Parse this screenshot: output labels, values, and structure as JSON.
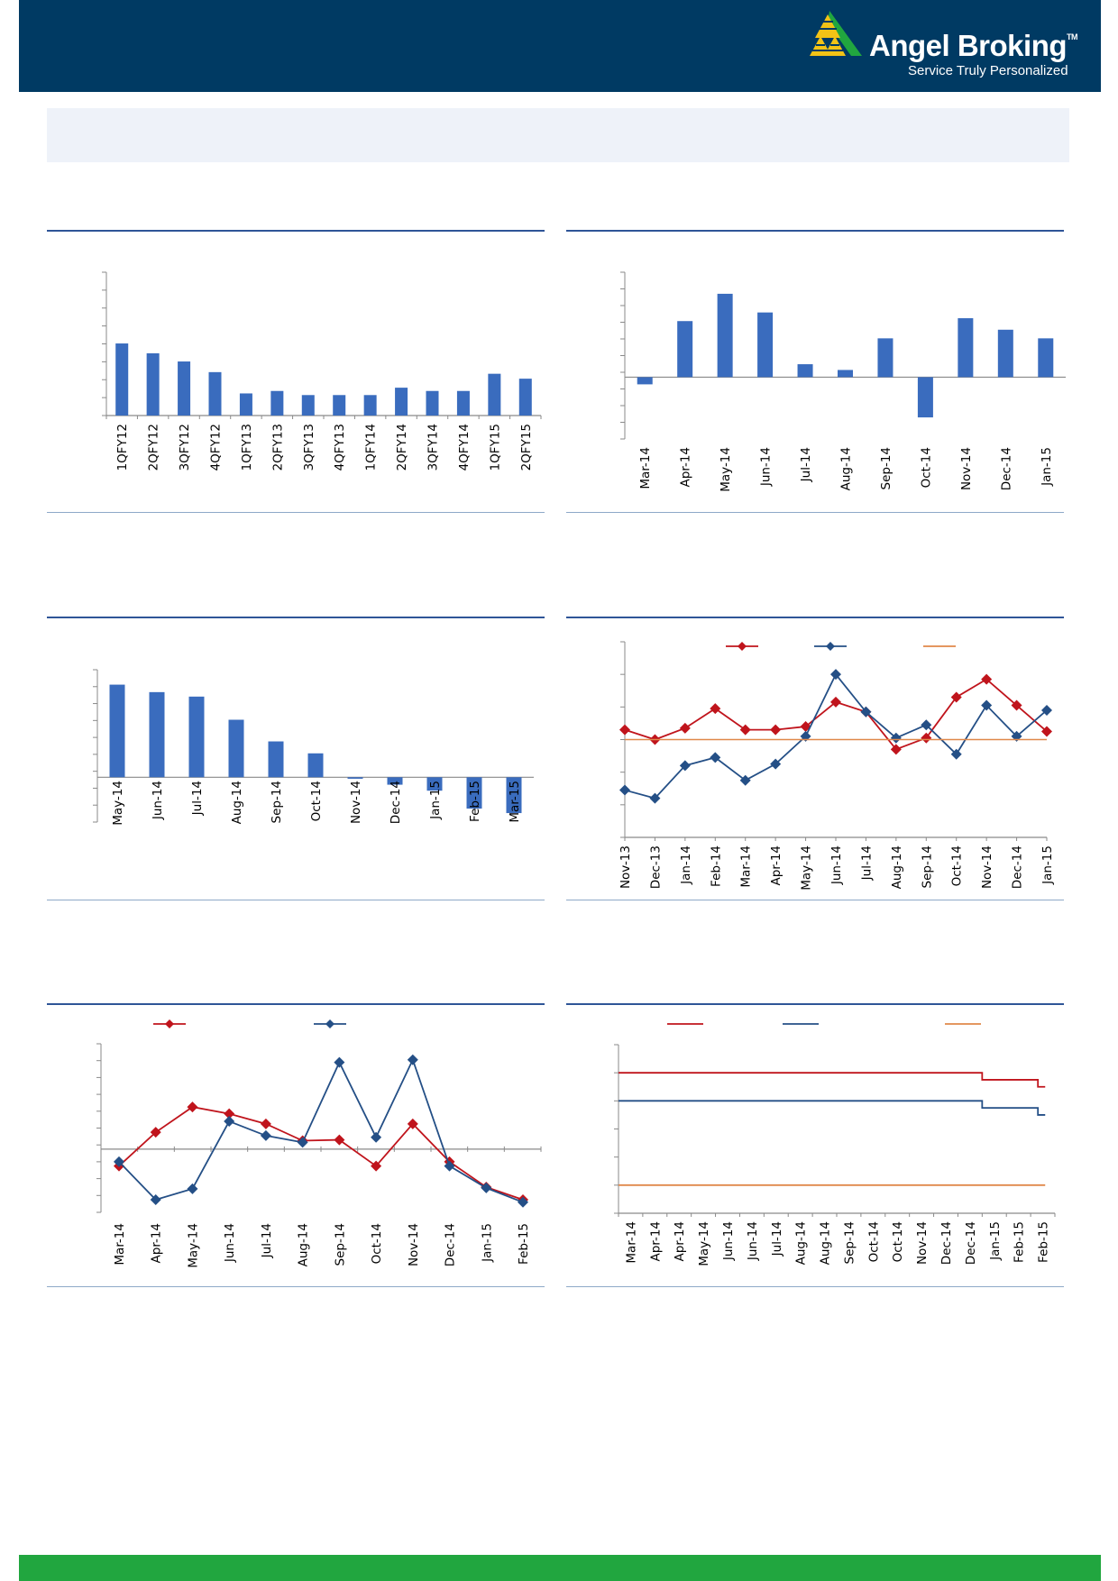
{
  "brand": {
    "name": "Angel Broking",
    "trademark": "TM",
    "tagline": "Service Truly Personalized"
  },
  "colors": {
    "header_bg": "#003a63",
    "accent_green": "#21a63f",
    "bar_blue": "#3a6cbe",
    "series_red": "#c0141c",
    "series_navy": "#244f86",
    "series_orange": "#e0884a",
    "rule_blue": "#2f5597"
  },
  "chart_data": [
    {
      "type": "bar",
      "categories": [
        "1QFY12",
        "2QFY12",
        "3QFY12",
        "4QFY12",
        "1QFY13",
        "2QFY13",
        "3QFY13",
        "4QFY13",
        "1QFY14",
        "2QFY14",
        "3QFY14",
        "4QFY14",
        "1QFY15",
        "2QFY15"
      ],
      "values": [
        8.8,
        7.6,
        6.6,
        5.3,
        2.7,
        3.0,
        2.5,
        2.5,
        2.5,
        3.4,
        3.0,
        3.0,
        5.1,
        4.5
      ],
      "ylim": [
        0,
        17.5
      ],
      "title": "",
      "xlabel": "",
      "ylabel": ""
    },
    {
      "type": "bar",
      "categories": [
        "Mar-14",
        "Apr-14",
        "May-14",
        "Jun-14",
        "Jul-14",
        "Aug-14",
        "Sep-14",
        "Oct-14",
        "Nov-14",
        "Dec-14",
        "Jan-15"
      ],
      "values": [
        -0.5,
        3.9,
        5.8,
        4.5,
        0.9,
        0.5,
        2.7,
        -2.8,
        4.1,
        3.3,
        2.7
      ],
      "ylim": [
        -4.3,
        7.3
      ],
      "title": "",
      "xlabel": "",
      "ylabel": ""
    },
    {
      "type": "bar",
      "categories": [
        "May-14",
        "Jun-14",
        "Jul-14",
        "Aug-14",
        "Sep-14",
        "Oct-14",
        "Nov-14",
        "Dec-14",
        "Jan-15",
        "Feb-15",
        "Mar-15"
      ],
      "values": [
        6.2,
        5.7,
        5.4,
        3.85,
        2.4,
        1.6,
        -0.1,
        -0.5,
        -0.9,
        -2.1,
        -2.4
      ],
      "ylim": [
        -3,
        7.2
      ],
      "title": "",
      "xlabel": "",
      "ylabel": ""
    },
    {
      "type": "line",
      "categories": [
        "Nov-13",
        "Dec-13",
        "Jan-14",
        "Feb-14",
        "Mar-14",
        "Apr-14",
        "May-14",
        "Jun-14",
        "Jul-14",
        "Aug-14",
        "Sep-14",
        "Oct-14",
        "Nov-14",
        "Dec-14",
        "Jan-15"
      ],
      "series": [
        {
          "name": "",
          "color": "#c0141c",
          "values": [
            50.6,
            50.0,
            50.7,
            51.9,
            50.6,
            50.6,
            50.8,
            52.3,
            51.7,
            49.4,
            50.1,
            52.6,
            53.7,
            52.1,
            50.5
          ]
        },
        {
          "name": "",
          "color": "#244f86",
          "values": [
            46.9,
            46.4,
            48.4,
            48.9,
            47.5,
            48.5,
            50.2,
            54.0,
            51.7,
            50.1,
            50.9,
            49.1,
            52.1,
            50.2,
            51.8
          ]
        },
        {
          "name": "",
          "color": "#e0884a",
          "values": [
            50,
            50,
            50,
            50,
            50,
            50,
            50,
            50,
            50,
            50,
            50,
            50,
            50,
            50,
            50
          ]
        }
      ],
      "ylim": [
        44,
        56
      ],
      "legend": "top",
      "title": "",
      "xlabel": "",
      "ylabel": ""
    },
    {
      "type": "line",
      "categories": [
        "Mar-14",
        "Apr-14",
        "May-14",
        "Jun-14",
        "Jul-14",
        "Aug-14",
        "Sep-14",
        "Oct-14",
        "Nov-14",
        "Dec-14",
        "Jan-15",
        "Feb-15"
      ],
      "series": [
        {
          "name": "",
          "color": "#c0141c",
          "values": [
            -2.0,
            2.0,
            5.0,
            4.2,
            3.0,
            1.0,
            1.1,
            -2.0,
            3.0,
            -1.5,
            -4.5,
            -6.0
          ]
        },
        {
          "name": "",
          "color": "#244f86",
          "values": [
            -1.5,
            -6.0,
            -4.7,
            3.3,
            1.6,
            0.8,
            10.3,
            1.4,
            10.6,
            -2.0,
            -4.6,
            -6.3
          ]
        }
      ],
      "ylim": [
        -7.5,
        12.5
      ],
      "legend": "top",
      "title": "",
      "xlabel": "",
      "ylabel": ""
    },
    {
      "type": "line",
      "step": true,
      "categories": [
        "Mar-14",
        "Apr-14",
        "Apr-14",
        "May-14",
        "Jun-14",
        "Jun-14",
        "Jul-14",
        "Aug-14",
        "Aug-14",
        "Sep-14",
        "Oct-14",
        "Oct-14",
        "Nov-14",
        "Dec-14",
        "Dec-14",
        "Jan-15",
        "Feb-15",
        "Feb-15"
      ],
      "series": [
        {
          "name": "",
          "color": "#c0141c",
          "x": [
            0,
            15.0,
            15.0,
            17.3,
            17.3,
            17.6
          ],
          "values": [
            8.0,
            8.0,
            7.75,
            7.75,
            7.5,
            7.5
          ]
        },
        {
          "name": "",
          "color": "#244f86",
          "x": [
            0,
            15.0,
            15.0,
            17.3,
            17.3,
            17.6
          ],
          "values": [
            7.0,
            7.0,
            6.75,
            6.75,
            6.5,
            6.5
          ]
        },
        {
          "name": "",
          "color": "#e0884a",
          "x": [
            0,
            17.6
          ],
          "values": [
            4.0,
            4.0
          ]
        }
      ],
      "ylim": [
        3,
        9
      ],
      "legend": "top",
      "title": "",
      "xlabel": "",
      "ylabel": ""
    }
  ]
}
